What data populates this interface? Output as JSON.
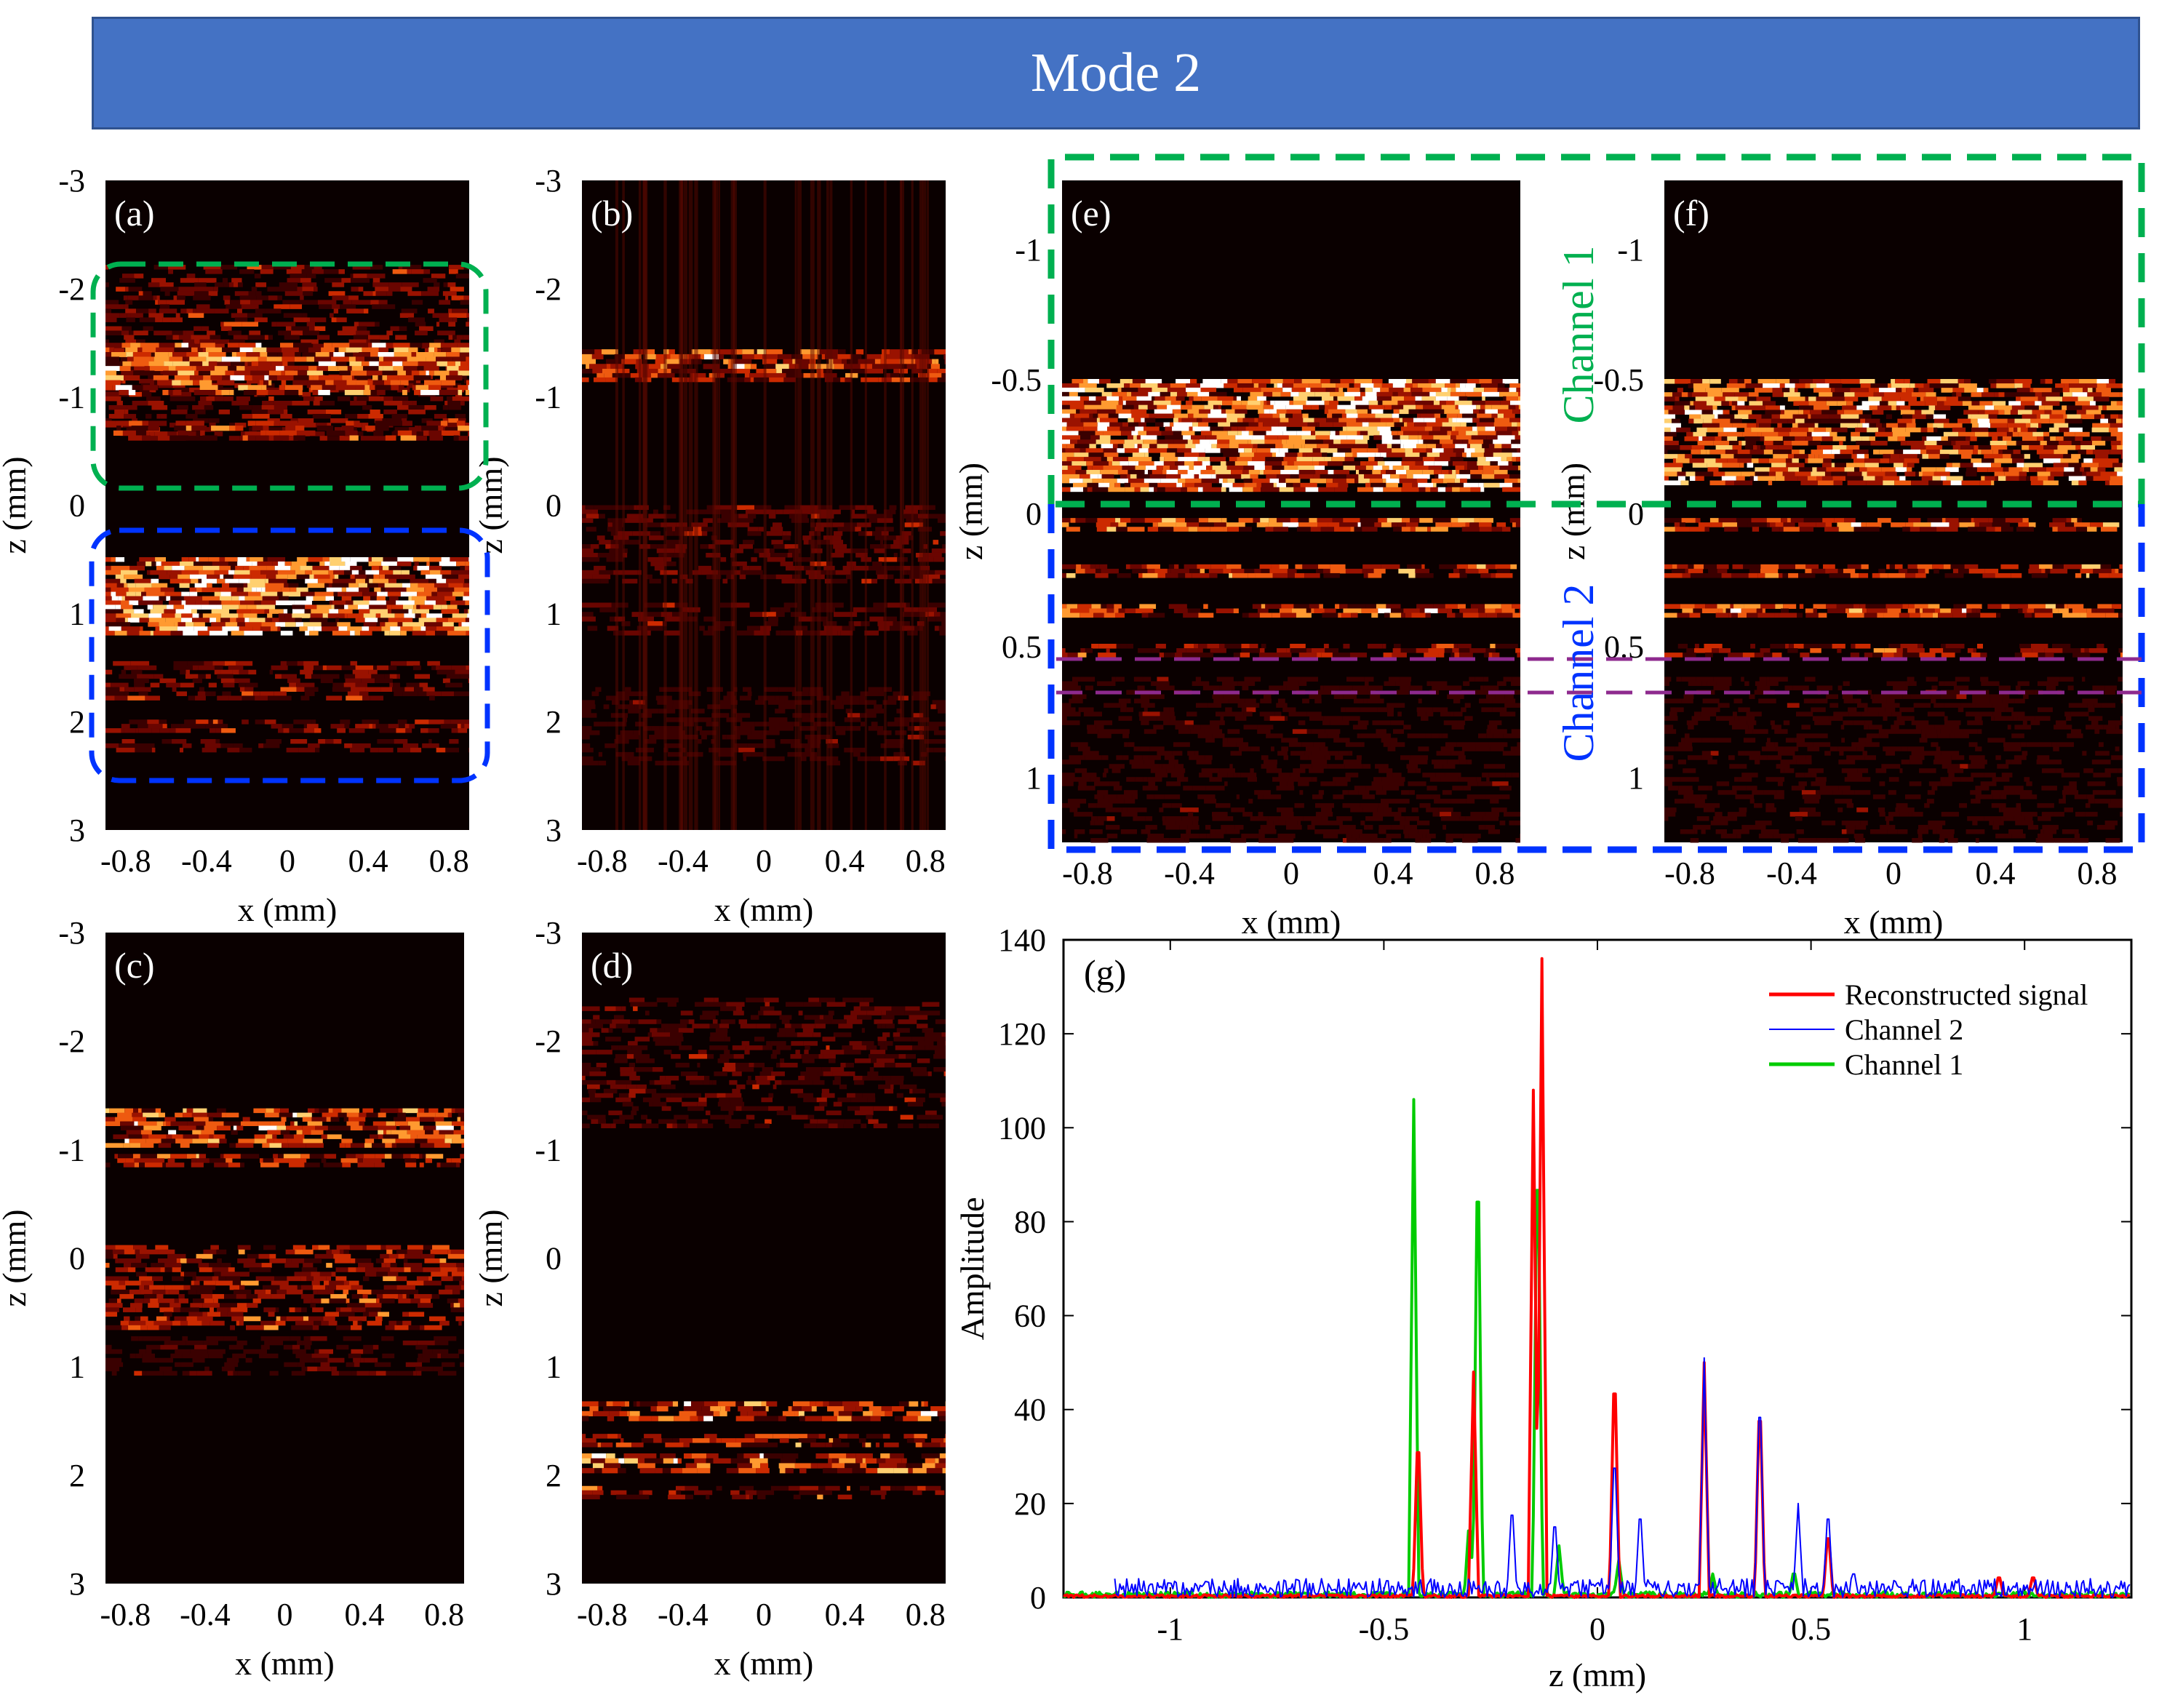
{
  "banner": {
    "title": "Mode 2"
  },
  "panel_labels": {
    "a": "(a)",
    "b": "(b)",
    "c": "(c)",
    "d": "(d)",
    "e": "(e)",
    "f": "(f)",
    "g": "(g)"
  },
  "images": {
    "x_label": "x (mm)",
    "z_label": "z (mm)",
    "x_ticks": [
      "-0.8",
      "-0.4",
      "0",
      "0.4",
      "0.8"
    ],
    "z_ticks": [
      "-3",
      "-2",
      "-1",
      "0",
      "1",
      "2",
      "3"
    ],
    "zoom_z_ticks": [
      "-1",
      "-0.5",
      "0",
      "0.5",
      "1"
    ]
  },
  "annotations": {
    "channel1": "Channel 1",
    "channel2": "Channel 2"
  },
  "colors": {
    "banner": "#4472c4",
    "channel1_box": "#00b050",
    "channel2_box": "#0033ff",
    "roi_box": "#8e2a8e",
    "image_bg": "#0a0000"
  },
  "chart_data": {
    "type": "line",
    "panel": "(g)",
    "xlabel": "z (mm)",
    "ylabel": "Amplitude",
    "xlim": [
      -1.25,
      1.25
    ],
    "ylim": [
      0,
      140
    ],
    "x_ticks": [
      "-1",
      "-0.5",
      "0",
      "0.5",
      "1"
    ],
    "y_ticks": [
      "0",
      "20",
      "40",
      "60",
      "80",
      "100",
      "120",
      "140"
    ],
    "legend_position": "top-right",
    "series": [
      {
        "name": "Reconstructed signal",
        "color": "#ff0000",
        "peaks": [
          [
            -0.42,
            37
          ],
          [
            -0.29,
            48
          ],
          [
            -0.15,
            108
          ],
          [
            -0.13,
            136
          ],
          [
            0.04,
            52
          ],
          [
            0.25,
            50
          ],
          [
            0.38,
            45
          ],
          [
            0.54,
            15
          ],
          [
            0.94,
            5
          ],
          [
            1.02,
            5
          ]
        ]
      },
      {
        "name": "Channel 2",
        "color": "#0000ff",
        "peaks": [
          [
            -0.2,
            21
          ],
          [
            -0.1,
            18
          ],
          [
            0.04,
            33
          ],
          [
            0.1,
            20
          ],
          [
            0.25,
            51
          ],
          [
            0.38,
            46
          ],
          [
            0.47,
            20
          ],
          [
            0.54,
            20
          ],
          [
            0.6,
            6
          ]
        ]
      },
      {
        "name": "Channel 1",
        "color": "#00cc00",
        "peaks": [
          [
            -0.43,
            106
          ],
          [
            -0.3,
            17
          ],
          [
            -0.28,
            101
          ],
          [
            -0.14,
            104
          ],
          [
            -0.09,
            11
          ],
          [
            0.05,
            8
          ],
          [
            0.27,
            5
          ],
          [
            0.46,
            6
          ]
        ]
      }
    ]
  }
}
